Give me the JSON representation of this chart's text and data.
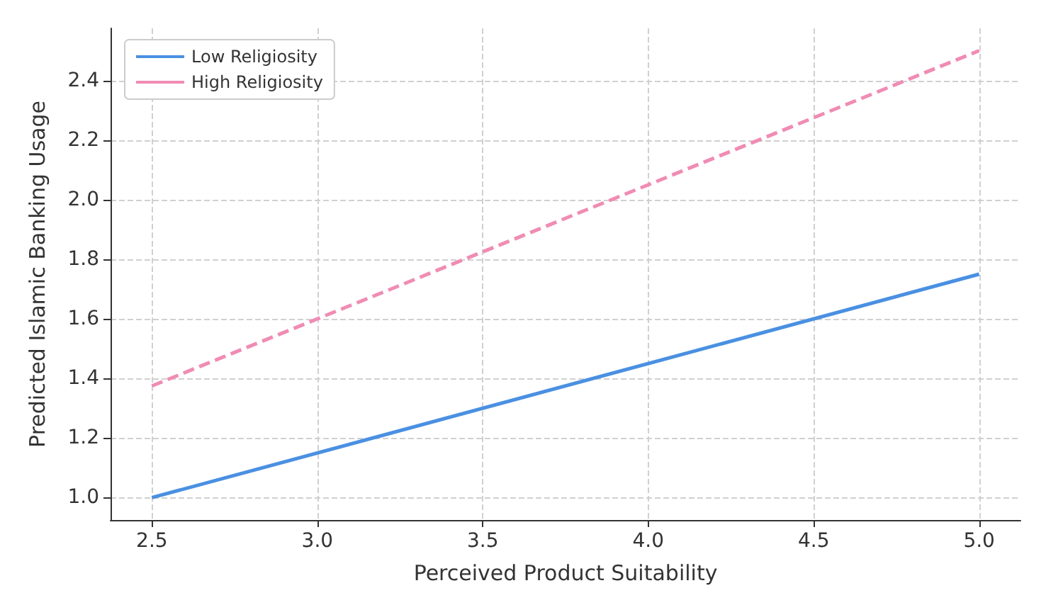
{
  "chart_data": {
    "type": "line",
    "xlabel": "Perceived Product Suitability",
    "ylabel": "Predicted Islamic Banking Usage",
    "x": [
      2.5,
      5.0
    ],
    "series": [
      {
        "name": "Low Religiosity",
        "color": "#4a90e2",
        "values": [
          1.0,
          1.75
        ],
        "line_style": "solid"
      },
      {
        "name": "High Religiosity",
        "color": "#f08cb4",
        "values": [
          1.375,
          2.5
        ],
        "line_style": "dashed"
      }
    ],
    "xlim": [
      2.375,
      5.125
    ],
    "xticks": [
      2.5,
      {
        "value": 3,
        "label": "3.0"
      },
      3.5,
      {
        "value": 4,
        "label": "4.0"
      },
      4.5,
      {
        "value": 5,
        "label": "5.0"
      }
    ],
    "ylim": [
      0.925,
      2.575
    ],
    "yticks": [
      {
        "value": 1,
        "label": "1.0"
      },
      1.2,
      1.4,
      1.6,
      1.8,
      {
        "value": 2,
        "label": "2.0"
      },
      2.2,
      2.4
    ],
    "grid": true,
    "legend": "top left",
    "marker": "none"
  }
}
